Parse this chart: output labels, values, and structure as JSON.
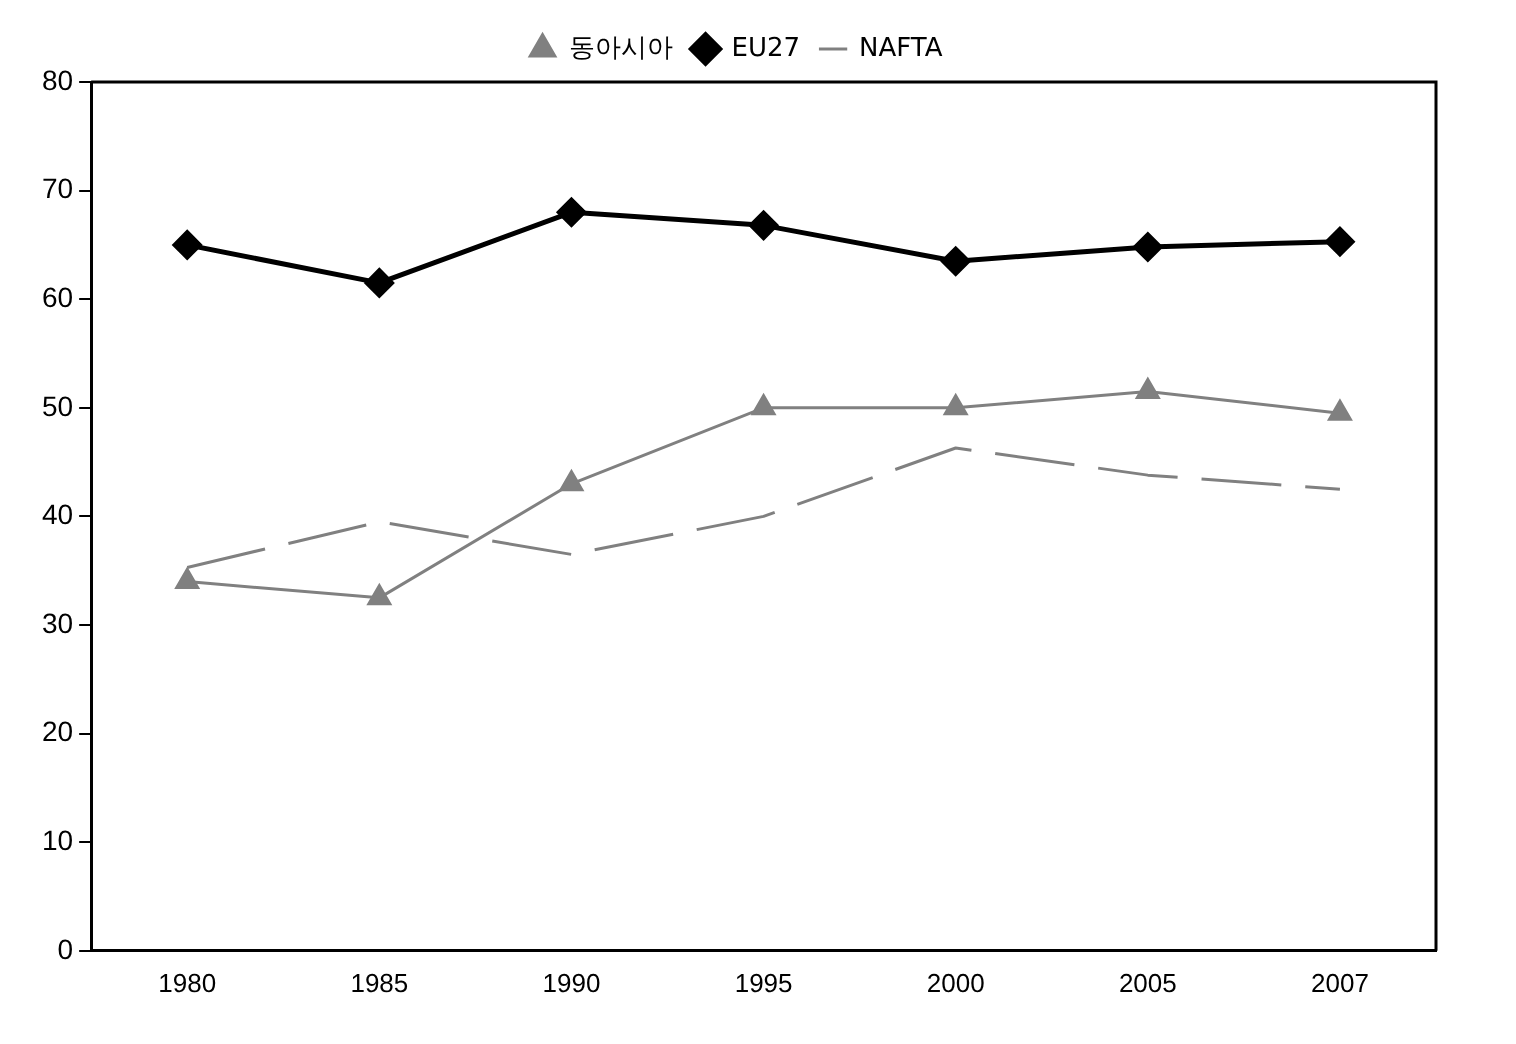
{
  "chart_data": {
    "type": "line",
    "categories": [
      "1980",
      "1985",
      "1990",
      "1995",
      "2000",
      "2005",
      "2007"
    ],
    "series": [
      {
        "name": "동아시아",
        "color": "#808080",
        "marker": "triangle",
        "line_style": "solid",
        "values": [
          34,
          32.5,
          43,
          50,
          50,
          51.5,
          49.5
        ]
      },
      {
        "name": "EU27",
        "color": "#000000",
        "marker": "diamond",
        "line_style": "solid",
        "values": [
          65,
          61.5,
          68,
          66.8,
          63.5,
          64.8,
          65.3
        ]
      },
      {
        "name": "NAFTA",
        "color": "#808080",
        "marker": "none",
        "line_style": "dashed",
        "values": [
          35.3,
          39.5,
          36.5,
          40,
          46.3,
          43.8,
          42.5
        ]
      }
    ],
    "ylim": [
      0,
      80
    ],
    "yticks": [
      0,
      10,
      20,
      30,
      40,
      50,
      60,
      70,
      80
    ],
    "grid": false,
    "legend": "top"
  }
}
